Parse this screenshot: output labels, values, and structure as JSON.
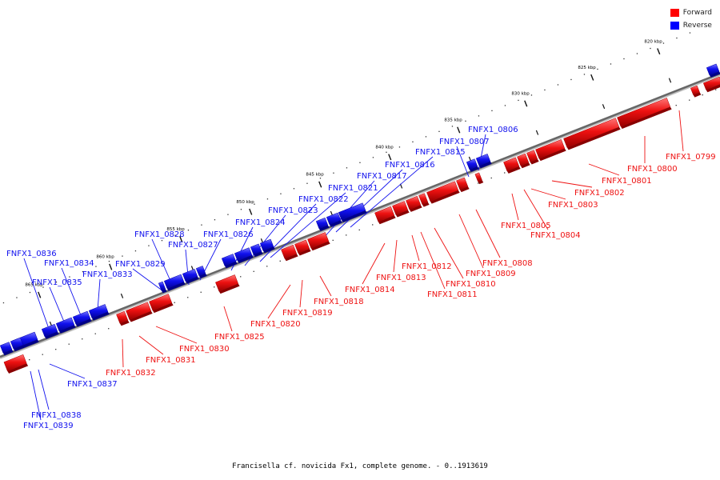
{
  "legend": {
    "items": [
      {
        "label": "Forward",
        "color": "#ff0000"
      },
      {
        "label": "Reverse",
        "color": "#0000ff"
      }
    ]
  },
  "caption": "Francisella cf. novicida Fx1, complete genome. - 0..1913619",
  "colors": {
    "forward": "#ee1111",
    "reverse": "#1111ee",
    "backbone": "#666666"
  },
  "ticks": [
    "820 kbp",
    "825 kbp",
    "830 kbp",
    "835 kbp",
    "840 kbp",
    "845 kbp",
    "850 kbp",
    "855 kbp",
    "860 kbp",
    "865 kbp"
  ],
  "genes": [
    {
      "id": "FNFX1_0799",
      "strand": "forward"
    },
    {
      "id": "FNFX1_0800",
      "strand": "forward"
    },
    {
      "id": "FNFX1_0801",
      "strand": "forward"
    },
    {
      "id": "FNFX1_0802",
      "strand": "forward"
    },
    {
      "id": "FNFX1_0803",
      "strand": "forward"
    },
    {
      "id": "FNFX1_0804",
      "strand": "forward"
    },
    {
      "id": "FNFX1_0805",
      "strand": "forward"
    },
    {
      "id": "FNFX1_0806",
      "strand": "reverse"
    },
    {
      "id": "FNFX1_0807",
      "strand": "reverse"
    },
    {
      "id": "FNFX1_0808",
      "strand": "forward"
    },
    {
      "id": "FNFX1_0809",
      "strand": "forward"
    },
    {
      "id": "FNFX1_0810",
      "strand": "forward"
    },
    {
      "id": "FNFX1_0811",
      "strand": "forward"
    },
    {
      "id": "FNFX1_0812",
      "strand": "forward"
    },
    {
      "id": "FNFX1_0813",
      "strand": "forward"
    },
    {
      "id": "FNFX1_0814",
      "strand": "forward"
    },
    {
      "id": "FNFX1_0815",
      "strand": "reverse"
    },
    {
      "id": "FNFX1_0816",
      "strand": "reverse"
    },
    {
      "id": "FNFX1_0817",
      "strand": "reverse"
    },
    {
      "id": "FNFX1_0818",
      "strand": "forward"
    },
    {
      "id": "FNFX1_0819",
      "strand": "forward"
    },
    {
      "id": "FNFX1_0820",
      "strand": "forward"
    },
    {
      "id": "FNFX1_0821",
      "strand": "reverse"
    },
    {
      "id": "FNFX1_0822",
      "strand": "reverse"
    },
    {
      "id": "FNFX1_0823",
      "strand": "reverse"
    },
    {
      "id": "FNFX1_0824",
      "strand": "reverse"
    },
    {
      "id": "FNFX1_0825",
      "strand": "forward"
    },
    {
      "id": "FNFX1_0826",
      "strand": "reverse"
    },
    {
      "id": "FNFX1_0827",
      "strand": "reverse"
    },
    {
      "id": "FNFX1_0828",
      "strand": "reverse"
    },
    {
      "id": "FNFX1_0829",
      "strand": "reverse"
    },
    {
      "id": "FNFX1_0830",
      "strand": "forward"
    },
    {
      "id": "FNFX1_0831",
      "strand": "forward"
    },
    {
      "id": "FNFX1_0832",
      "strand": "forward"
    },
    {
      "id": "FNFX1_0833",
      "strand": "reverse"
    },
    {
      "id": "FNFX1_0834",
      "strand": "reverse"
    },
    {
      "id": "FNFX1_0835",
      "strand": "reverse"
    },
    {
      "id": "FNFX1_0836",
      "strand": "reverse"
    },
    {
      "id": "FNFX1_0837",
      "strand": "reverse"
    },
    {
      "id": "FNFX1_0838",
      "strand": "reverse"
    },
    {
      "id": "FNFX1_0839",
      "strand": "reverse"
    }
  ]
}
